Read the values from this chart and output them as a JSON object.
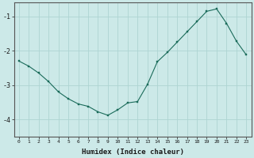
{
  "xlabel": "Humidex (Indice chaleur)",
  "ylabel": "",
  "background_color": "#cce9e8",
  "grid_color": "#aed4d2",
  "line_color": "#1a6b5a",
  "marker_color": "#1a6b5a",
  "xlim": [
    -0.5,
    23.5
  ],
  "ylim": [
    -4.5,
    -0.6
  ],
  "yticks": [
    -4,
    -3,
    -2,
    -1
  ],
  "xticks": [
    0,
    1,
    2,
    3,
    4,
    5,
    6,
    7,
    8,
    9,
    10,
    11,
    12,
    13,
    14,
    15,
    16,
    17,
    18,
    19,
    20,
    21,
    22,
    23
  ],
  "x": [
    0,
    1,
    2,
    3,
    4,
    5,
    6,
    7,
    8,
    9,
    10,
    11,
    12,
    13,
    14,
    15,
    16,
    17,
    18,
    19,
    20,
    21,
    22,
    23
  ],
  "y": [
    -2.3,
    -2.45,
    -2.65,
    -2.9,
    -3.2,
    -3.4,
    -3.55,
    -3.62,
    -3.78,
    -3.88,
    -3.72,
    -3.52,
    -3.48,
    -2.98,
    -2.32,
    -2.05,
    -1.75,
    -1.45,
    -1.15,
    -0.85,
    -0.78,
    -1.2,
    -1.72,
    -2.12
  ]
}
